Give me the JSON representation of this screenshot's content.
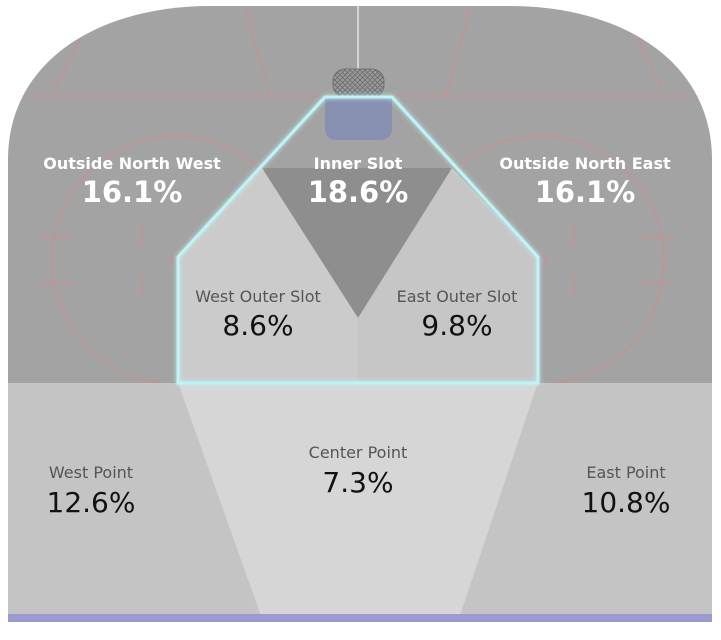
{
  "zones": {
    "outside_north_west": {
      "name": "Outside North West",
      "pct": "16.1%"
    },
    "inner_slot": {
      "name": "Inner Slot",
      "pct": "18.6%"
    },
    "outside_north_east": {
      "name": "Outside North East",
      "pct": "16.1%"
    },
    "west_outer_slot": {
      "name": "West Outer Slot",
      "pct": "8.6%"
    },
    "east_outer_slot": {
      "name": "East Outer Slot",
      "pct": "9.8%"
    },
    "west_point": {
      "name": "West Point",
      "pct": "12.6%"
    },
    "center_point": {
      "name": "Center Point",
      "pct": "7.3%"
    },
    "east_point": {
      "name": "East Point",
      "pct": "10.8%"
    }
  },
  "colors": {
    "rink_outer": "#a3a3a3",
    "inner_slot": "#8c8c8c",
    "outer_slot": "#cbcbcb",
    "point_side": "#c4c4c4",
    "center_point": "#d6d6d6",
    "slot_outline": "#bff3f5",
    "blue_line": "#9a9ad0",
    "crease": "#8790b0"
  }
}
